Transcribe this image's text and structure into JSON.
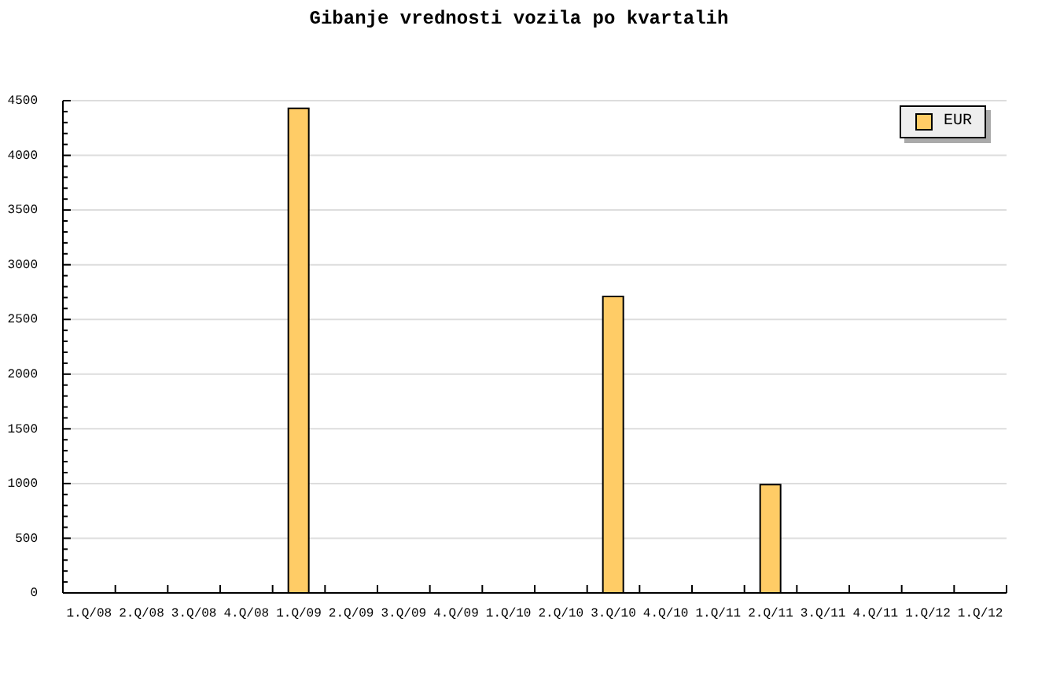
{
  "chart_data": {
    "type": "bar",
    "title": "Gibanje vrednosti vozila po kvartalih",
    "categories": [
      "1.Q/08",
      "2.Q/08",
      "3.Q/08",
      "4.Q/08",
      "1.Q/09",
      "2.Q/09",
      "3.Q/09",
      "4.Q/09",
      "1.Q/10",
      "2.Q/10",
      "3.Q/10",
      "4.Q/10",
      "1.Q/11",
      "2.Q/11",
      "3.Q/11",
      "4.Q/11",
      "1.Q/12",
      "1.Q/12"
    ],
    "series": [
      {
        "name": "EUR",
        "color": "#ffcc66",
        "values": [
          null,
          null,
          null,
          null,
          4430,
          null,
          null,
          null,
          null,
          null,
          2710,
          null,
          null,
          990,
          null,
          null,
          null,
          null
        ]
      }
    ],
    "ylim": [
      0,
      4500
    ],
    "yticks": [
      0,
      {
        "value": 100,
        "label": null
      },
      {
        "value": 200,
        "label": null
      },
      {
        "value": 300,
        "label": null
      },
      {
        "value": 400,
        "label": null
      },
      500,
      {
        "value": 600,
        "label": null
      },
      {
        "value": 700,
        "label": null
      },
      {
        "value": 800,
        "label": null
      },
      {
        "value": 900,
        "label": null
      },
      1000,
      {
        "value": 1100,
        "label": null
      },
      {
        "value": 1200,
        "label": null
      },
      {
        "value": 1300,
        "label": null
      },
      {
        "value": 1400,
        "label": null
      },
      1500,
      {
        "value": 1600,
        "label": null
      },
      {
        "value": 1700,
        "label": null
      },
      {
        "value": 1800,
        "label": null
      },
      {
        "value": 1900,
        "label": null
      },
      2000,
      {
        "value": 2100,
        "label": null
      },
      {
        "value": 2200,
        "label": null
      },
      {
        "value": 2300,
        "label": null
      },
      {
        "value": 2400,
        "label": null
      },
      2500,
      {
        "value": 2600,
        "label": null
      },
      {
        "value": 2700,
        "label": null
      },
      {
        "value": 2800,
        "label": null
      },
      {
        "value": 2900,
        "label": null
      },
      3000,
      {
        "value": 3100,
        "label": null
      },
      {
        "value": 3200,
        "label": null
      },
      {
        "value": 3300,
        "label": null
      },
      {
        "value": 3400,
        "label": null
      },
      3500,
      {
        "value": 3600,
        "label": null
      },
      {
        "value": 3700,
        "label": null
      },
      {
        "value": 3800,
        "label": null
      },
      {
        "value": 3900,
        "label": null
      },
      4000,
      {
        "value": 4100,
        "label": null
      },
      {
        "value": 4200,
        "label": null
      },
      {
        "value": 4300,
        "label": null
      },
      {
        "value": 4400,
        "label": null
      },
      4500
    ],
    "grid": "y",
    "legend": "top right"
  }
}
